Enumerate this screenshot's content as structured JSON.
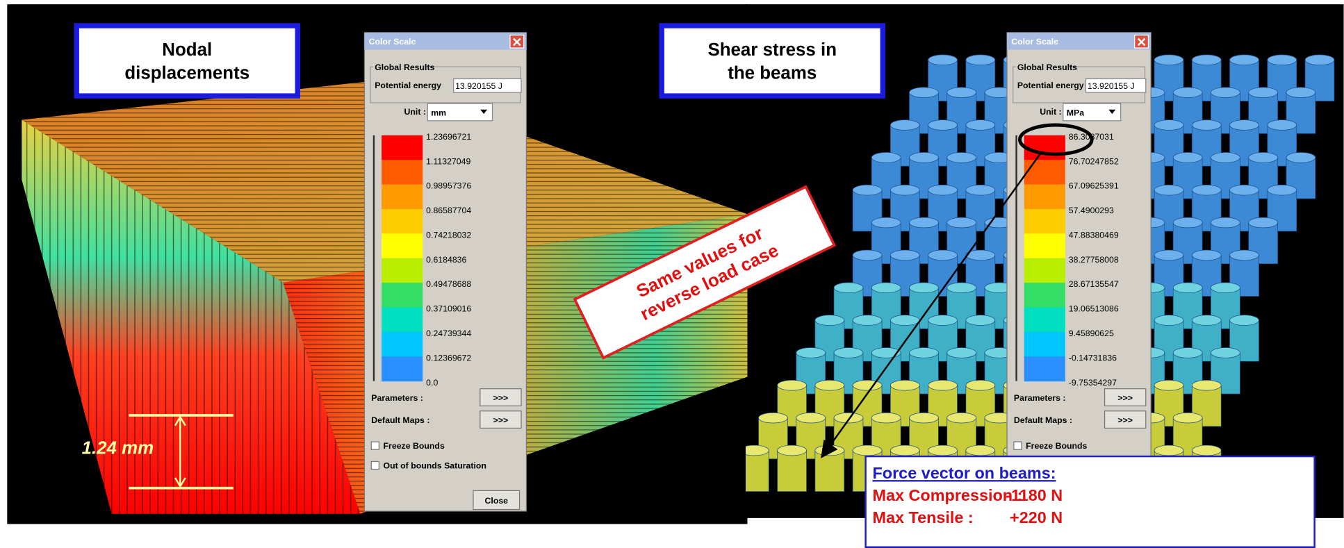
{
  "panels": [
    {
      "label": [
        "Nodal",
        "displacements"
      ],
      "dialog": {
        "title": "Color Scale",
        "group": "Global Results",
        "energy_label": "Potential energy",
        "energy_value": "13.920155 J",
        "unit_label": "Unit :",
        "unit": "mm",
        "scale": [
          "1.23696721",
          "1.11327049",
          "0.98957376",
          "0.86587704",
          "0.74218032",
          "0.6184836",
          "0.49478688",
          "0.37109016",
          "0.24739344",
          "0.12369672",
          "0.0"
        ],
        "parameters": "Parameters :",
        "parameters_button": ">>>",
        "default_maps": "Default Maps :",
        "default_maps_button": ">>>",
        "checkboxes": [
          "Freeze Bounds",
          "Out of bounds Saturation"
        ],
        "close": "Close"
      },
      "dimension": "1.24 mm"
    },
    {
      "label": [
        "Shear stress in",
        "the beams"
      ],
      "dialog": {
        "title": "Color Scale",
        "group": "Global Results",
        "energy_label": "Potential energy",
        "energy_value": "13.920155 J",
        "unit_label": "Unit :",
        "unit": "MPa",
        "scale": [
          "86.3087031",
          "76.70247852",
          "67.09625391",
          "57.4900293",
          "47.88380469",
          "38.27758008",
          "28.67135547",
          "19.06513086",
          "9.45890625",
          "-0.14731836",
          "-9.75354297"
        ],
        "parameters": "Parameters :",
        "parameters_button": ">>>",
        "default_maps": "Default Maps :",
        "default_maps_button": ">>>",
        "checkboxes": [
          "Freeze Bounds"
        ]
      }
    }
  ],
  "annotation": [
    "Same values for",
    "reverse load case"
  ],
  "force_box": {
    "title": "Force vector on beams:",
    "rows": [
      {
        "label": "Max Compression :",
        "value": "-1180 N"
      },
      {
        "label": "Max Tensile :",
        "value": "+220 N"
      }
    ]
  }
}
